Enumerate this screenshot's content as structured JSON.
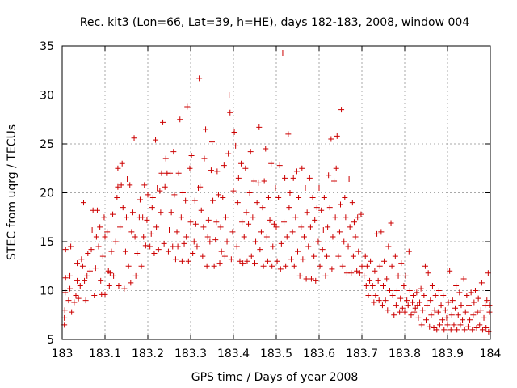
{
  "chart_data": {
    "type": "scatter",
    "title": "Rec. kit3 (Lon=66, Lat=39, h=HE), days 182-183, 2008, window 004",
    "xlabel": "GPS time / Days of year 2008",
    "ylabel": "STEC from uqrg / TECUs",
    "xlim": [
      183,
      184
    ],
    "ylim": [
      5,
      35
    ],
    "xticks": [
      "183",
      "183.1",
      "183.2",
      "183.3",
      "183.4",
      "183.5",
      "183.6",
      "183.7",
      "183.8",
      "183.9",
      "184"
    ],
    "yticks": [
      "5",
      "10",
      "15",
      "20",
      "25",
      "30",
      "35"
    ],
    "grid": true,
    "marker": "+",
    "color": "#cc0000",
    "points": [
      [
        183.005,
        6.5
      ],
      [
        183.005,
        7.2
      ],
      [
        183.006,
        8.0
      ],
      [
        183.007,
        9.8
      ],
      [
        183.008,
        11.3
      ],
      [
        183.008,
        14.2
      ],
      [
        183.015,
        9.0
      ],
      [
        183.018,
        10.2
      ],
      [
        183.018,
        11.5
      ],
      [
        183.02,
        14.5
      ],
      [
        183.022,
        7.8
      ],
      [
        183.028,
        8.8
      ],
      [
        183.032,
        9.5
      ],
      [
        183.035,
        11.0
      ],
      [
        183.035,
        12.8
      ],
      [
        183.038,
        9.2
      ],
      [
        183.042,
        10.5
      ],
      [
        183.045,
        13.2
      ],
      [
        183.048,
        12.5
      ],
      [
        183.05,
        19.0
      ],
      [
        183.052,
        11.0
      ],
      [
        183.055,
        9.0
      ],
      [
        183.058,
        11.5
      ],
      [
        183.06,
        13.8
      ],
      [
        183.065,
        12.0
      ],
      [
        183.068,
        14.2
      ],
      [
        183.07,
        16.2
      ],
      [
        183.072,
        18.2
      ],
      [
        183.075,
        9.5
      ],
      [
        183.078,
        12.3
      ],
      [
        183.08,
        15.5
      ],
      [
        183.082,
        18.2
      ],
      [
        183.085,
        14.5
      ],
      [
        183.088,
        16.5
      ],
      [
        183.09,
        11.0
      ],
      [
        183.092,
        9.6
      ],
      [
        183.095,
        13.5
      ],
      [
        183.098,
        17.5
      ],
      [
        183.1,
        15.5
      ],
      [
        183.1,
        9.6
      ],
      [
        183.105,
        16.0
      ],
      [
        183.108,
        12.0
      ],
      [
        183.11,
        10.5
      ],
      [
        183.112,
        11.8
      ],
      [
        183.115,
        14.0
      ],
      [
        183.118,
        17.8
      ],
      [
        183.12,
        11.5
      ],
      [
        183.125,
        15.0
      ],
      [
        183.128,
        19.5
      ],
      [
        183.13,
        20.6
      ],
      [
        183.13,
        22.5
      ],
      [
        183.132,
        10.5
      ],
      [
        183.135,
        16.5
      ],
      [
        183.138,
        20.8
      ],
      [
        183.14,
        23.0
      ],
      [
        183.142,
        18.5
      ],
      [
        183.145,
        10.2
      ],
      [
        183.148,
        14.0
      ],
      [
        183.15,
        17.5
      ],
      [
        183.152,
        21.4
      ],
      [
        183.155,
        12.5
      ],
      [
        183.158,
        20.8
      ],
      [
        183.16,
        10.8
      ],
      [
        183.162,
        16.0
      ],
      [
        183.165,
        18.0
      ],
      [
        183.168,
        25.6
      ],
      [
        183.17,
        15.5
      ],
      [
        183.172,
        11.5
      ],
      [
        183.175,
        13.8
      ],
      [
        183.18,
        17.5
      ],
      [
        183.182,
        19.3
      ],
      [
        183.185,
        12.5
      ],
      [
        183.188,
        17.5
      ],
      [
        183.19,
        15.5
      ],
      [
        183.192,
        20.8
      ],
      [
        183.195,
        14.6
      ],
      [
        183.198,
        17.2
      ],
      [
        183.2,
        19.8
      ],
      [
        183.205,
        14.5
      ],
      [
        183.208,
        15.8
      ],
      [
        183.21,
        18.5
      ],
      [
        183.212,
        19.5
      ],
      [
        183.215,
        13.8
      ],
      [
        183.218,
        25.4
      ],
      [
        183.22,
        16.5
      ],
      [
        183.222,
        20.5
      ],
      [
        183.225,
        14.2
      ],
      [
        183.228,
        20.2
      ],
      [
        183.23,
        18.0
      ],
      [
        183.232,
        22.0
      ],
      [
        183.235,
        27.2
      ],
      [
        183.238,
        14.8
      ],
      [
        183.24,
        20.6
      ],
      [
        183.242,
        23.5
      ],
      [
        183.245,
        22.0
      ],
      [
        183.248,
        14.0
      ],
      [
        183.25,
        16.2
      ],
      [
        183.252,
        22.0
      ],
      [
        183.255,
        18.0
      ],
      [
        183.258,
        14.5
      ],
      [
        183.26,
        24.2
      ],
      [
        183.262,
        19.8
      ],
      [
        183.265,
        13.2
      ],
      [
        183.268,
        16.0
      ],
      [
        183.27,
        14.5
      ],
      [
        183.272,
        22.0
      ],
      [
        183.275,
        27.5
      ],
      [
        183.278,
        17.5
      ],
      [
        183.28,
        13.0
      ],
      [
        183.282,
        20.0
      ],
      [
        183.285,
        14.8
      ],
      [
        183.288,
        19.2
      ],
      [
        183.29,
        15.5
      ],
      [
        183.292,
        28.8
      ],
      [
        183.295,
        13.0
      ],
      [
        183.298,
        22.5
      ],
      [
        183.3,
        17.0
      ],
      [
        183.302,
        23.8
      ],
      [
        183.305,
        13.8
      ],
      [
        183.308,
        15.0
      ],
      [
        183.31,
        19.2
      ],
      [
        183.312,
        16.8
      ],
      [
        183.315,
        14.5
      ],
      [
        183.318,
        20.5
      ],
      [
        183.32,
        31.7
      ],
      [
        183.322,
        20.6
      ],
      [
        183.325,
        18.2
      ],
      [
        183.328,
        13.5
      ],
      [
        183.33,
        16.5
      ],
      [
        183.332,
        23.5
      ],
      [
        183.335,
        26.5
      ],
      [
        183.338,
        12.5
      ],
      [
        183.34,
        15.5
      ],
      [
        183.342,
        17.2
      ],
      [
        183.345,
        15.0
      ],
      [
        183.348,
        22.3
      ],
      [
        183.35,
        25.2
      ],
      [
        183.352,
        19.2
      ],
      [
        183.355,
        12.5
      ],
      [
        183.358,
        15.2
      ],
      [
        183.36,
        17.0
      ],
      [
        183.362,
        22.2
      ],
      [
        183.365,
        19.8
      ],
      [
        183.368,
        12.8
      ],
      [
        183.37,
        16.5
      ],
      [
        183.372,
        14.0
      ],
      [
        183.375,
        19.5
      ],
      [
        183.378,
        22.8
      ],
      [
        183.38,
        13.5
      ],
      [
        183.382,
        17.5
      ],
      [
        183.385,
        15.0
      ],
      [
        183.388,
        24.0
      ],
      [
        183.39,
        30.0
      ],
      [
        183.392,
        28.2
      ],
      [
        183.395,
        13.2
      ],
      [
        183.398,
        16.0
      ],
      [
        183.4,
        20.2
      ],
      [
        183.402,
        26.2
      ],
      [
        183.405,
        24.8
      ],
      [
        183.408,
        14.5
      ],
      [
        183.41,
        19.0
      ],
      [
        183.412,
        21.5
      ],
      [
        183.415,
        13.0
      ],
      [
        183.418,
        23.0
      ],
      [
        183.42,
        17.0
      ],
      [
        183.422,
        12.8
      ],
      [
        183.425,
        15.5
      ],
      [
        183.428,
        22.5
      ],
      [
        183.43,
        18.0
      ],
      [
        183.432,
        13.0
      ],
      [
        183.435,
        16.8
      ],
      [
        183.438,
        20.0
      ],
      [
        183.44,
        24.2
      ],
      [
        183.442,
        13.5
      ],
      [
        183.445,
        17.5
      ],
      [
        183.448,
        21.2
      ],
      [
        183.45,
        12.8
      ],
      [
        183.452,
        15.0
      ],
      [
        183.455,
        19.0
      ],
      [
        183.458,
        21.0
      ],
      [
        183.46,
        26.7
      ],
      [
        183.462,
        14.2
      ],
      [
        183.465,
        16.0
      ],
      [
        183.468,
        18.5
      ],
      [
        183.47,
        12.5
      ],
      [
        183.472,
        21.2
      ],
      [
        183.475,
        24.5
      ],
      [
        183.478,
        15.5
      ],
      [
        183.48,
        13.0
      ],
      [
        183.482,
        19.5
      ],
      [
        183.485,
        17.2
      ],
      [
        183.488,
        23.0
      ],
      [
        183.49,
        12.5
      ],
      [
        183.492,
        14.5
      ],
      [
        183.495,
        16.8
      ],
      [
        183.498,
        20.5
      ],
      [
        183.5,
        16.5
      ],
      [
        183.502,
        13.0
      ],
      [
        183.505,
        19.5
      ],
      [
        183.508,
        22.8
      ],
      [
        183.51,
        12.2
      ],
      [
        183.512,
        14.8
      ],
      [
        183.515,
        34.3
      ],
      [
        183.518,
        17.0
      ],
      [
        183.52,
        21.5
      ],
      [
        183.522,
        12.5
      ],
      [
        183.525,
        15.5
      ],
      [
        183.528,
        26.0
      ],
      [
        183.53,
        18.5
      ],
      [
        183.532,
        20.0
      ],
      [
        183.535,
        13.2
      ],
      [
        183.538,
        16.0
      ],
      [
        183.54,
        21.5
      ],
      [
        183.542,
        12.5
      ],
      [
        183.545,
        17.5
      ],
      [
        183.548,
        22.2
      ],
      [
        183.55,
        14.0
      ],
      [
        183.552,
        19.5
      ],
      [
        183.555,
        11.5
      ],
      [
        183.558,
        16.5
      ],
      [
        183.56,
        22.5
      ],
      [
        183.562,
        13.2
      ],
      [
        183.565,
        15.5
      ],
      [
        183.568,
        20.5
      ],
      [
        183.57,
        11.2
      ],
      [
        183.572,
        18.0
      ],
      [
        183.575,
        14.5
      ],
      [
        183.578,
        21.5
      ],
      [
        183.58,
        16.5
      ],
      [
        183.582,
        11.2
      ],
      [
        183.585,
        19.5
      ],
      [
        183.588,
        13.5
      ],
      [
        183.59,
        17.2
      ],
      [
        183.592,
        11.0
      ],
      [
        183.595,
        18.5
      ],
      [
        183.598,
        15.0
      ],
      [
        183.6,
        20.5
      ],
      [
        183.602,
        12.5
      ],
      [
        183.605,
        18.2
      ],
      [
        183.608,
        14.2
      ],
      [
        183.61,
        16.2
      ],
      [
        183.612,
        19.5
      ],
      [
        183.615,
        11.5
      ],
      [
        183.618,
        13.5
      ],
      [
        183.62,
        16.5
      ],
      [
        183.622,
        21.8
      ],
      [
        183.625,
        18.5
      ],
      [
        183.628,
        25.5
      ],
      [
        183.63,
        12.2
      ],
      [
        183.632,
        15.5
      ],
      [
        183.635,
        21.2
      ],
      [
        183.638,
        17.5
      ],
      [
        183.64,
        22.5
      ],
      [
        183.642,
        25.8
      ],
      [
        183.645,
        13.5
      ],
      [
        183.648,
        16.0
      ],
      [
        183.65,
        18.8
      ],
      [
        183.652,
        28.5
      ],
      [
        183.655,
        12.5
      ],
      [
        183.658,
        15.0
      ],
      [
        183.66,
        19.5
      ],
      [
        183.662,
        17.5
      ],
      [
        183.665,
        11.8
      ],
      [
        183.668,
        14.5
      ],
      [
        183.67,
        21.4
      ],
      [
        183.672,
        16.5
      ],
      [
        183.675,
        11.8
      ],
      [
        183.678,
        19.0
      ],
      [
        183.68,
        13.5
      ],
      [
        183.682,
        17.0
      ],
      [
        183.685,
        15.5
      ],
      [
        183.688,
        12.0
      ],
      [
        183.69,
        17.5
      ],
      [
        183.692,
        14.0
      ],
      [
        183.695,
        11.8
      ],
      [
        183.698,
        17.8
      ],
      [
        183.7,
        12.5
      ],
      [
        183.705,
        11.5
      ],
      [
        183.708,
        13.5
      ],
      [
        183.71,
        10.5
      ],
      [
        183.712,
        12.5
      ],
      [
        183.715,
        9.5
      ],
      [
        183.718,
        11.0
      ],
      [
        183.72,
        13.0
      ],
      [
        183.725,
        10.5
      ],
      [
        183.728,
        8.8
      ],
      [
        183.73,
        12.0
      ],
      [
        183.732,
        9.5
      ],
      [
        183.735,
        15.8
      ],
      [
        183.738,
        11.0
      ],
      [
        183.74,
        9.0
      ],
      [
        183.742,
        12.5
      ],
      [
        183.745,
        16.0
      ],
      [
        183.748,
        8.5
      ],
      [
        183.75,
        10.5
      ],
      [
        183.752,
        13.0
      ],
      [
        183.755,
        9.0
      ],
      [
        183.758,
        11.2
      ],
      [
        183.76,
        8.0
      ],
      [
        183.762,
        14.5
      ],
      [
        183.765,
        10.0
      ],
      [
        183.768,
        16.9
      ],
      [
        183.77,
        12.5
      ],
      [
        183.772,
        9.5
      ],
      [
        183.775,
        7.5
      ],
      [
        183.778,
        13.5
      ],
      [
        183.78,
        8.5
      ],
      [
        183.782,
        10.0
      ],
      [
        183.785,
        11.5
      ],
      [
        183.788,
        7.8
      ],
      [
        183.79,
        9.2
      ],
      [
        183.792,
        12.8
      ],
      [
        183.795,
        8.2
      ],
      [
        183.798,
        10.5
      ],
      [
        183.8,
        7.8
      ],
      [
        183.802,
        11.5
      ],
      [
        183.805,
        9.0
      ],
      [
        183.808,
        8.5
      ],
      [
        183.81,
        14.0
      ],
      [
        183.812,
        10.0
      ],
      [
        183.815,
        7.5
      ],
      [
        183.818,
        8.8
      ],
      [
        183.82,
        9.5
      ],
      [
        183.822,
        7.8
      ],
      [
        183.825,
        8.2
      ],
      [
        183.828,
        9.8
      ],
      [
        183.83,
        8.5
      ],
      [
        183.832,
        7.2
      ],
      [
        183.835,
        8.8
      ],
      [
        183.838,
        10.2
      ],
      [
        183.84,
        6.5
      ],
      [
        183.842,
        8.0
      ],
      [
        183.845,
        9.5
      ],
      [
        183.848,
        12.5
      ],
      [
        183.85,
        7.0
      ],
      [
        183.852,
        8.5
      ],
      [
        183.855,
        11.8
      ],
      [
        183.858,
        6.3
      ],
      [
        183.86,
        9.0
      ],
      [
        183.862,
        7.5
      ],
      [
        183.865,
        10.5
      ],
      [
        183.868,
        6.2
      ],
      [
        183.87,
        8.0
      ],
      [
        183.872,
        9.5
      ],
      [
        183.875,
        6.0
      ],
      [
        183.878,
        7.8
      ],
      [
        183.88,
        10.0
      ],
      [
        183.882,
        6.5
      ],
      [
        183.885,
        8.5
      ],
      [
        183.888,
        7.0
      ],
      [
        183.89,
        9.5
      ],
      [
        183.892,
        6.0
      ],
      [
        183.895,
        8.0
      ],
      [
        183.898,
        7.2
      ],
      [
        183.9,
        6.5
      ],
      [
        183.902,
        8.8
      ],
      [
        183.905,
        12.0
      ],
      [
        183.908,
        6.0
      ],
      [
        183.91,
        7.5
      ],
      [
        183.912,
        9.0
      ],
      [
        183.915,
        6.5
      ],
      [
        183.918,
        8.2
      ],
      [
        183.92,
        10.5
      ],
      [
        183.922,
        6.0
      ],
      [
        183.925,
        7.5
      ],
      [
        183.928,
        9.8
      ],
      [
        183.93,
        6.5
      ],
      [
        183.932,
        8.5
      ],
      [
        183.935,
        7.0
      ],
      [
        183.938,
        11.2
      ],
      [
        183.94,
        6.0
      ],
      [
        183.942,
        7.8
      ],
      [
        183.945,
        9.5
      ],
      [
        183.948,
        6.3
      ],
      [
        183.95,
        8.5
      ],
      [
        183.952,
        7.0
      ],
      [
        183.955,
        9.8
      ],
      [
        183.958,
        6.0
      ],
      [
        183.96,
        7.5
      ],
      [
        183.962,
        8.8
      ],
      [
        183.965,
        10.0
      ],
      [
        183.968,
        6.2
      ],
      [
        183.97,
        7.8
      ],
      [
        183.972,
        9.2
      ],
      [
        183.975,
        6.5
      ],
      [
        183.978,
        8.0
      ],
      [
        183.98,
        10.8
      ],
      [
        183.982,
        6.0
      ],
      [
        183.985,
        7.2
      ],
      [
        183.988,
        8.5
      ],
      [
        183.99,
        6.2
      ],
      [
        183.992,
        9.0
      ],
      [
        183.995,
        11.8
      ],
      [
        183.996,
        5.8
      ],
      [
        183.998,
        7.8
      ],
      [
        183.998,
        8.5
      ]
    ]
  }
}
